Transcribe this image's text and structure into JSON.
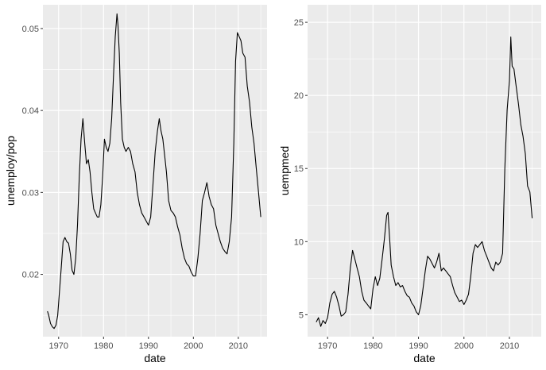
{
  "chart_data": [
    {
      "type": "line",
      "xlabel": "date",
      "ylabel": "unemploy/pop",
      "xlim": [
        1966.5,
        2016.4
      ],
      "ylim": [
        0.0124,
        0.0529
      ],
      "x_ticks": [
        1970,
        1980,
        1990,
        2000,
        2010
      ],
      "y_ticks": [
        0.02,
        0.03,
        0.04,
        0.05
      ],
      "y_tick_labels": [
        "0.02",
        "0.03",
        "0.04",
        "0.05"
      ],
      "grid": true,
      "legend": "none",
      "line_color": "#000000",
      "panel_color": "#ebebeb",
      "series": [
        {
          "x": [
            1967.5,
            1967.8,
            1968.2,
            1968.6,
            1969.0,
            1969.4,
            1969.8,
            1970.2,
            1970.6,
            1971.0,
            1971.4,
            1971.8,
            1972.2,
            1972.6,
            1973.0,
            1973.4,
            1973.8,
            1974.2,
            1974.6,
            1975.0,
            1975.4,
            1975.8,
            1976.2,
            1976.6,
            1977.0,
            1977.4,
            1977.8,
            1978.2,
            1978.6,
            1979.0,
            1979.4,
            1979.8,
            1980.2,
            1980.6,
            1981.0,
            1981.4,
            1981.8,
            1982.2,
            1982.6,
            1983.0,
            1983.2,
            1983.5,
            1983.8,
            1984.2,
            1984.6,
            1985.0,
            1985.5,
            1986.0,
            1986.5,
            1987.0,
            1987.5,
            1988.0,
            1988.5,
            1989.0,
            1989.5,
            1990.0,
            1990.5,
            1991.0,
            1991.5,
            1992.0,
            1992.4,
            1992.8,
            1993.2,
            1993.6,
            1994.0,
            1994.5,
            1995.0,
            1995.5,
            1996.0,
            1996.5,
            1997.0,
            1997.5,
            1998.0,
            1998.5,
            1999.0,
            1999.5,
            2000.0,
            2000.5,
            2001.0,
            2001.5,
            2002.0,
            2002.5,
            2003.0,
            2003.5,
            2004.0,
            2004.5,
            2005.0,
            2005.5,
            2006.0,
            2006.5,
            2007.0,
            2007.5,
            2008.0,
            2008.5,
            2009.0,
            2009.4,
            2009.8,
            2010.2,
            2010.6,
            2011.0,
            2011.5,
            2012.0,
            2012.5,
            2013.0,
            2013.5,
            2014.0,
            2014.5,
            2015.0
          ],
          "y": [
            0.0155,
            0.015,
            0.014,
            0.0136,
            0.0134,
            0.0138,
            0.015,
            0.018,
            0.021,
            0.024,
            0.0245,
            0.024,
            0.0238,
            0.0225,
            0.0205,
            0.02,
            0.022,
            0.026,
            0.032,
            0.0365,
            0.039,
            0.036,
            0.0335,
            0.034,
            0.0325,
            0.03,
            0.028,
            0.0275,
            0.027,
            0.027,
            0.0285,
            0.032,
            0.0365,
            0.0355,
            0.035,
            0.036,
            0.039,
            0.044,
            0.049,
            0.0518,
            0.0505,
            0.047,
            0.041,
            0.0365,
            0.0355,
            0.035,
            0.0355,
            0.035,
            0.0335,
            0.0325,
            0.03,
            0.0285,
            0.0275,
            0.027,
            0.0265,
            0.026,
            0.027,
            0.031,
            0.035,
            0.0375,
            0.039,
            0.0375,
            0.0365,
            0.0345,
            0.0325,
            0.029,
            0.0278,
            0.0275,
            0.027,
            0.0258,
            0.0248,
            0.0232,
            0.022,
            0.0213,
            0.021,
            0.0203,
            0.0198,
            0.0198,
            0.022,
            0.025,
            0.029,
            0.03,
            0.0312,
            0.0295,
            0.0285,
            0.028,
            0.026,
            0.025,
            0.024,
            0.0232,
            0.0228,
            0.0225,
            0.024,
            0.027,
            0.036,
            0.046,
            0.0495,
            0.049,
            0.0485,
            0.047,
            0.0465,
            0.043,
            0.041,
            0.038,
            0.036,
            0.033,
            0.03,
            0.027
          ]
        }
      ]
    },
    {
      "type": "line",
      "xlabel": "date",
      "ylabel": "uempmed",
      "xlim": [
        1965.6,
        2017.0
      ],
      "ylim": [
        3.5,
        26.2
      ],
      "x_ticks": [
        1970,
        1980,
        1990,
        2000,
        2010
      ],
      "y_ticks": [
        5,
        10,
        15,
        20,
        25
      ],
      "y_tick_labels": [
        "5",
        "10",
        "15",
        "20",
        "25"
      ],
      "grid": true,
      "legend": "none",
      "line_color": "#000000",
      "panel_color": "#ebebeb",
      "series": [
        {
          "x": [
            1967.5,
            1968.0,
            1968.5,
            1969.0,
            1969.5,
            1970.0,
            1970.5,
            1971.0,
            1971.5,
            1972.0,
            1972.5,
            1973.0,
            1973.5,
            1974.0,
            1974.5,
            1975.0,
            1975.5,
            1976.0,
            1976.5,
            1977.0,
            1977.5,
            1978.0,
            1978.5,
            1979.0,
            1979.5,
            1980.0,
            1980.5,
            1981.0,
            1981.5,
            1982.0,
            1982.5,
            1983.0,
            1983.3,
            1983.7,
            1984.0,
            1984.5,
            1985.0,
            1985.5,
            1986.0,
            1986.5,
            1987.0,
            1987.5,
            1988.0,
            1988.5,
            1989.0,
            1989.5,
            1990.0,
            1990.5,
            1991.0,
            1991.5,
            1992.0,
            1992.5,
            1993.0,
            1993.5,
            1994.0,
            1994.5,
            1995.0,
            1995.5,
            1996.0,
            1996.5,
            1997.0,
            1997.5,
            1998.0,
            1998.5,
            1999.0,
            1999.5,
            2000.0,
            2000.5,
            2001.0,
            2001.5,
            2002.0,
            2002.5,
            2003.0,
            2003.5,
            2004.0,
            2004.5,
            2005.0,
            2005.5,
            2006.0,
            2006.5,
            2007.0,
            2007.5,
            2008.0,
            2008.5,
            2009.0,
            2009.5,
            2010.0,
            2010.3,
            2010.6,
            2011.0,
            2011.5,
            2012.0,
            2012.5,
            2013.0,
            2013.5,
            2014.0,
            2014.5,
            2015.0
          ],
          "y": [
            4.5,
            4.8,
            4.2,
            4.6,
            4.4,
            4.8,
            5.8,
            6.4,
            6.6,
            6.2,
            5.6,
            4.9,
            5.0,
            5.2,
            6.4,
            8.2,
            9.4,
            8.8,
            8.2,
            7.6,
            6.6,
            6.0,
            5.8,
            5.6,
            5.4,
            6.8,
            7.6,
            7.0,
            7.5,
            8.8,
            10.2,
            11.8,
            12.0,
            10.0,
            8.4,
            7.6,
            7.0,
            7.2,
            6.9,
            7.0,
            6.6,
            6.3,
            6.2,
            5.8,
            5.6,
            5.2,
            5.0,
            5.6,
            6.8,
            8.0,
            9.0,
            8.8,
            8.5,
            8.2,
            8.6,
            9.2,
            8.0,
            8.2,
            8.0,
            7.8,
            7.6,
            7.0,
            6.5,
            6.2,
            5.9,
            6.0,
            5.7,
            6.0,
            6.4,
            7.6,
            9.2,
            9.8,
            9.6,
            9.8,
            10.0,
            9.4,
            9.0,
            8.6,
            8.2,
            8.0,
            8.6,
            8.4,
            8.6,
            9.2,
            15.0,
            19.0,
            21.0,
            24.0,
            22.0,
            21.8,
            20.6,
            19.4,
            18.0,
            17.2,
            16.0,
            13.8,
            13.4,
            11.6
          ]
        }
      ]
    }
  ]
}
